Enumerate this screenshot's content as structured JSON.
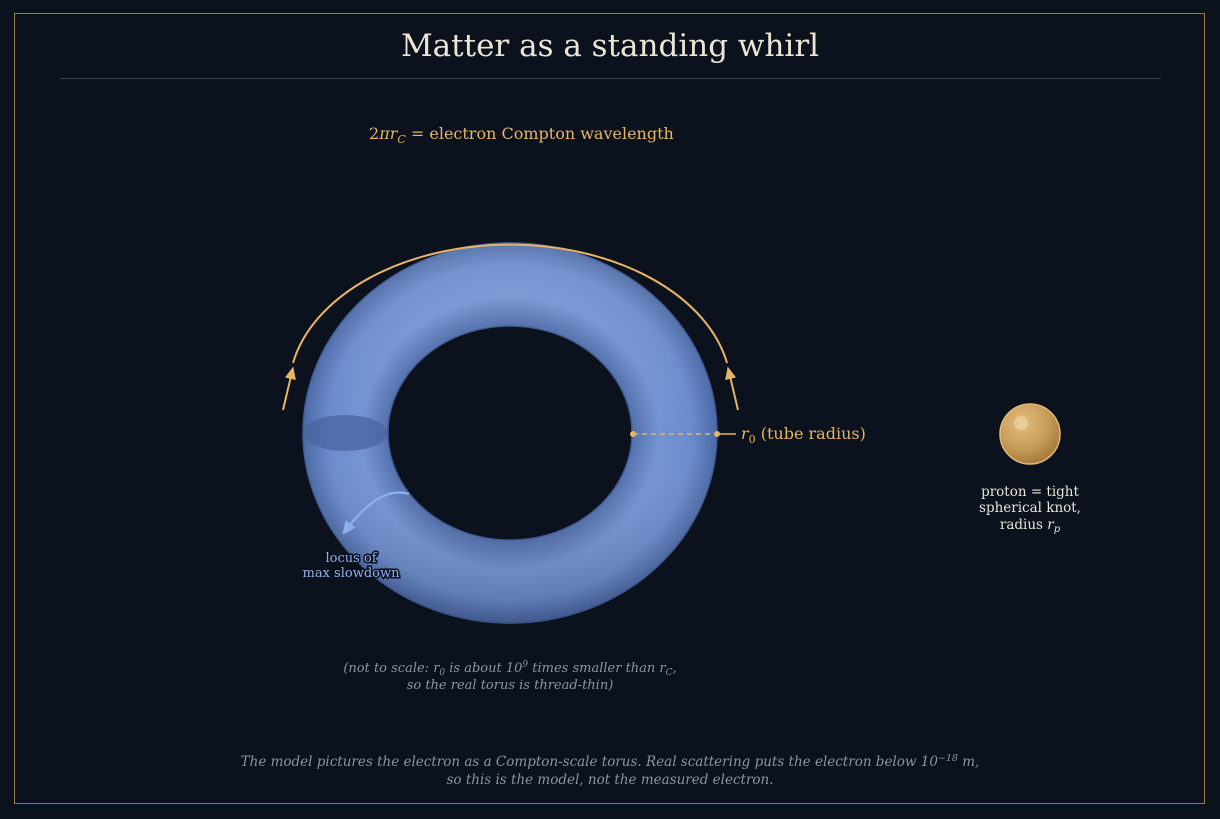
{
  "title": "Matter as a standing whirl",
  "circumference_label": {
    "prefix": "2",
    "symbol": "πr",
    "subscript": "C",
    "text": " = electron Compton wavelength"
  },
  "tube_radius_label": {
    "symbol": "r",
    "subscript": "0",
    "text": " (tube radius)"
  },
  "locus_label": {
    "line1": "locus of",
    "line2": "max slowdown"
  },
  "proton_label": {
    "line1": "proton = tight",
    "line2": "spherical knot,",
    "line3_prefix": "radius ",
    "line3_symbol": "r",
    "line3_subscript": "p"
  },
  "scale_note": {
    "line1_a": "(not to scale: r",
    "line1_sub": "0",
    "line1_b": " is about 10",
    "line1_sup": "9",
    "line1_c": " times smaller than r",
    "line1_sub2": "C",
    "line1_d": ",",
    "line2": "so the real torus is thread-thin)"
  },
  "footer": {
    "line1_a": "The model pictures the electron as a Compton-scale torus. Real scattering puts the electron below 10",
    "line1_sup": "−18",
    "line1_b": " m,",
    "line2": "so this is the model, not the measured electron."
  },
  "colors": {
    "background": "#0b111d",
    "accent_gold": "#e6b563",
    "torus_blue": "#6f8fcc",
    "locus_blue": "#8fb1ea",
    "proton_gold": "#c89c58"
  }
}
